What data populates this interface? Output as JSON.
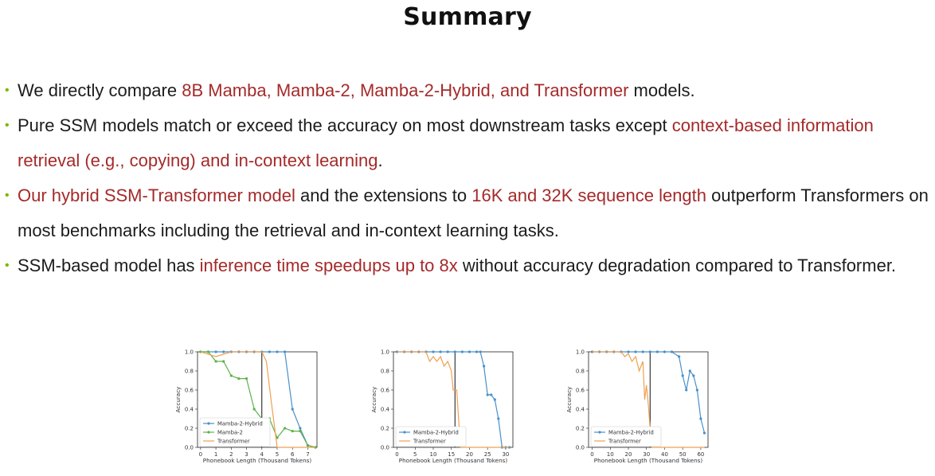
{
  "title": "Summary",
  "bullets": [
    {
      "segments": [
        {
          "text": "We directly compare ",
          "highlight": false
        },
        {
          "text": "8B Mamba, Mamba-2, Mamba-2-Hybrid, and Transformer",
          "highlight": true
        },
        {
          "text": " models.",
          "highlight": false
        }
      ]
    },
    {
      "segments": [
        {
          "text": "Pure SSM models match or exceed the accuracy on most downstream tasks except ",
          "highlight": false
        },
        {
          "text": "context-based information retrieval (e.g., copying) and in-context learning",
          "highlight": true
        },
        {
          "text": ".",
          "highlight": false
        }
      ]
    },
    {
      "segments": [
        {
          "text": "Our hybrid SSM-Transformer model",
          "highlight": true
        },
        {
          "text": " and the extensions to ",
          "highlight": false
        },
        {
          "text": "16K and 32K sequence length",
          "highlight": true
        },
        {
          "text": " outperform Transformers on most benchmarks including the retrieval and in-context learning tasks.",
          "highlight": false
        }
      ]
    },
    {
      "segments": [
        {
          "text": "SSM-based model has ",
          "highlight": false
        },
        {
          "text": "inference time speedups up to 8x",
          "highlight": true
        },
        {
          "text": " without accuracy degradation compared to Transformer.",
          "highlight": false
        }
      ]
    }
  ],
  "colors": {
    "highlight": "#a52a2a",
    "bullet": "#76b900",
    "mamba2_hybrid": "#4a90c8",
    "mamba2": "#5cb24a",
    "transformer": "#f0a050"
  },
  "chart_data": [
    {
      "type": "line",
      "xlabel": "Phonebook Length (Thousand Tokens)",
      "ylabel": "Accuracy",
      "xlim": [
        -0.2,
        7.6
      ],
      "ylim": [
        0,
        1.0
      ],
      "xticks": [
        0,
        1,
        2,
        3,
        4,
        5,
        6,
        7
      ],
      "yticks": [
        0.0,
        0.2,
        0.4,
        0.6,
        0.8,
        1.0
      ],
      "vline": 4,
      "legend": "lower-left",
      "series": [
        {
          "name": "Mamba-2-Hybrid",
          "color": "#4a90c8",
          "markers": true,
          "points": [
            [
              0,
              1.0
            ],
            [
              0.5,
              1.0
            ],
            [
              1,
              1.0
            ],
            [
              1.5,
              1.0
            ],
            [
              2,
              1.0
            ],
            [
              2.5,
              1.0
            ],
            [
              3,
              1.0
            ],
            [
              3.5,
              1.0
            ],
            [
              4,
              1.0
            ],
            [
              4.5,
              1.0
            ],
            [
              5,
              1.0
            ],
            [
              5.5,
              1.0
            ],
            [
              6,
              0.4
            ],
            [
              6.5,
              0.2
            ],
            [
              7,
              0.02
            ],
            [
              7.5,
              0.0
            ]
          ]
        },
        {
          "name": "Mamba-2",
          "color": "#5cb24a",
          "markers": true,
          "points": [
            [
              0,
              1.0
            ],
            [
              0.5,
              1.0
            ],
            [
              1,
              0.9
            ],
            [
              1.5,
              0.9
            ],
            [
              2,
              0.75
            ],
            [
              2.5,
              0.72
            ],
            [
              3,
              0.72
            ],
            [
              3.5,
              0.4
            ],
            [
              4,
              0.3
            ],
            [
              4.5,
              0.3
            ],
            [
              5,
              0.1
            ],
            [
              5.5,
              0.2
            ],
            [
              6,
              0.17
            ],
            [
              6.5,
              0.17
            ],
            [
              7,
              0.02
            ],
            [
              7.5,
              0.0
            ]
          ]
        },
        {
          "name": "Transformer",
          "color": "#f0a050",
          "markers": false,
          "points": [
            [
              0,
              1.0
            ],
            [
              1,
              0.95
            ],
            [
              2,
              1.0
            ],
            [
              3,
              1.0
            ],
            [
              4,
              1.0
            ],
            [
              4.3,
              0.9
            ],
            [
              4.6,
              0.5
            ],
            [
              5,
              0.0
            ],
            [
              6,
              0.0
            ],
            [
              7,
              0.0
            ],
            [
              7.5,
              0.0
            ]
          ]
        }
      ]
    },
    {
      "type": "line",
      "xlabel": "Phonebook Length (Thousand Tokens)",
      "ylabel": "Accuracy",
      "xlim": [
        -1,
        32
      ],
      "ylim": [
        0,
        1.0
      ],
      "xticks": [
        0,
        5,
        10,
        15,
        20,
        25,
        30
      ],
      "yticks": [
        0.0,
        0.2,
        0.4,
        0.6,
        0.8,
        1.0
      ],
      "vline": 16,
      "legend": "lower-left",
      "series": [
        {
          "name": "Mamba-2-Hybrid",
          "color": "#4a90c8",
          "markers": true,
          "points": [
            [
              0,
              1.0
            ],
            [
              2,
              1.0
            ],
            [
              4,
              1.0
            ],
            [
              6,
              1.0
            ],
            [
              8,
              1.0
            ],
            [
              10,
              1.0
            ],
            [
              12,
              1.0
            ],
            [
              14,
              1.0
            ],
            [
              16,
              1.0
            ],
            [
              18,
              1.0
            ],
            [
              20,
              1.0
            ],
            [
              22,
              1.0
            ],
            [
              23,
              1.0
            ],
            [
              24,
              0.85
            ],
            [
              25,
              0.55
            ],
            [
              26,
              0.55
            ],
            [
              27,
              0.5
            ],
            [
              28,
              0.3
            ],
            [
              29,
              0.0
            ],
            [
              30,
              0.0
            ],
            [
              31,
              0.0
            ]
          ]
        },
        {
          "name": "Transformer",
          "color": "#f0a050",
          "markers": false,
          "points": [
            [
              0,
              1.0
            ],
            [
              8,
              1.0
            ],
            [
              9,
              0.9
            ],
            [
              10,
              0.95
            ],
            [
              11,
              0.9
            ],
            [
              12,
              0.95
            ],
            [
              13,
              0.85
            ],
            [
              14,
              0.9
            ],
            [
              15,
              0.8
            ],
            [
              15.5,
              0.6
            ],
            [
              16.5,
              0.6
            ],
            [
              17,
              0.3
            ],
            [
              17.5,
              0.0
            ],
            [
              20,
              0.0
            ],
            [
              25,
              0.0
            ],
            [
              31,
              0.0
            ]
          ]
        }
      ]
    },
    {
      "type": "line",
      "xlabel": "Phonebook Length (Thousand Tokens)",
      "ylabel": "Accuracy",
      "xlim": [
        -2,
        64
      ],
      "ylim": [
        0,
        1.0
      ],
      "xticks": [
        0,
        10,
        20,
        30,
        40,
        50,
        60
      ],
      "yticks": [
        0.0,
        0.2,
        0.4,
        0.6,
        0.8,
        1.0
      ],
      "vline": 32,
      "legend": "lower-left",
      "series": [
        {
          "name": "Mamba-2-Hybrid",
          "color": "#4a90c8",
          "markers": true,
          "points": [
            [
              0,
              1.0
            ],
            [
              4,
              1.0
            ],
            [
              8,
              1.0
            ],
            [
              12,
              1.0
            ],
            [
              16,
              1.0
            ],
            [
              20,
              1.0
            ],
            [
              24,
              1.0
            ],
            [
              28,
              1.0
            ],
            [
              32,
              1.0
            ],
            [
              36,
              1.0
            ],
            [
              40,
              1.0
            ],
            [
              44,
              1.0
            ],
            [
              48,
              0.95
            ],
            [
              50,
              0.75
            ],
            [
              52,
              0.6
            ],
            [
              54,
              0.8
            ],
            [
              56,
              0.75
            ],
            [
              58,
              0.6
            ],
            [
              60,
              0.3
            ],
            [
              62,
              0.15
            ]
          ]
        },
        {
          "name": "Transformer",
          "color": "#f0a050",
          "markers": false,
          "points": [
            [
              0,
              1.0
            ],
            [
              16,
              1.0
            ],
            [
              18,
              0.95
            ],
            [
              20,
              0.98
            ],
            [
              22,
              0.9
            ],
            [
              24,
              0.95
            ],
            [
              26,
              0.8
            ],
            [
              28,
              0.9
            ],
            [
              29,
              0.5
            ],
            [
              30,
              0.65
            ],
            [
              31,
              0.45
            ],
            [
              32,
              0.2
            ],
            [
              33,
              0.0
            ],
            [
              40,
              0.0
            ],
            [
              50,
              0.0
            ],
            [
              62,
              0.0
            ]
          ]
        }
      ]
    }
  ]
}
